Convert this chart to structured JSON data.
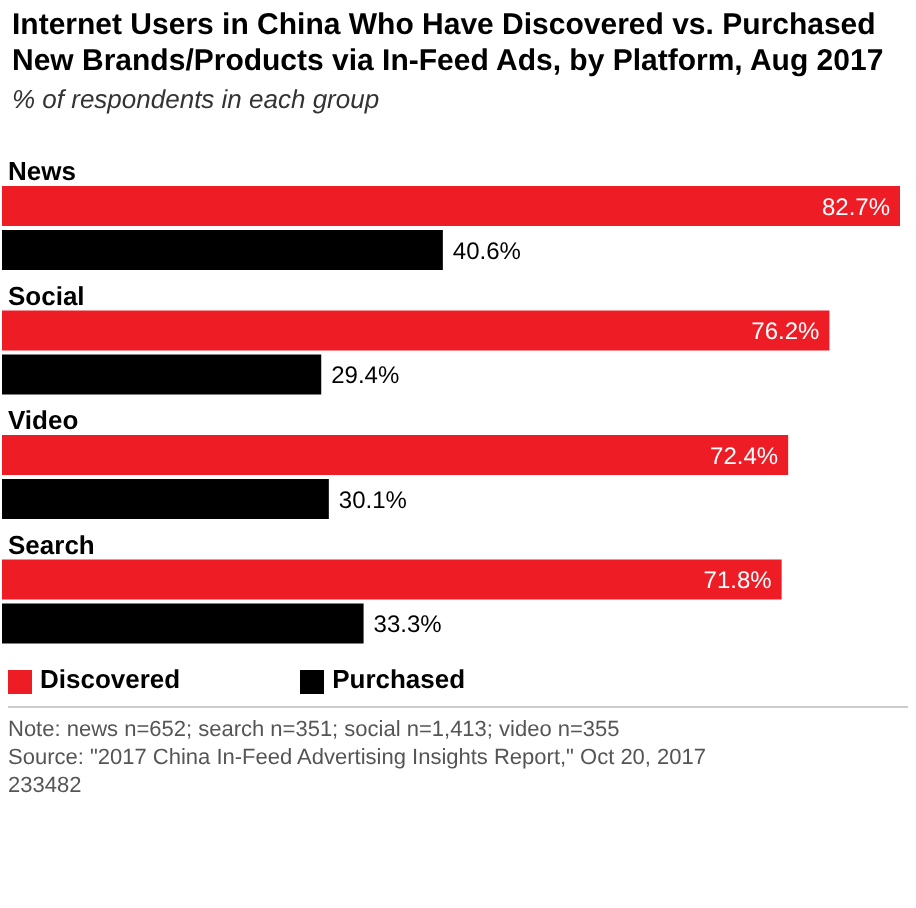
{
  "chart_data": {
    "type": "bar",
    "orientation": "horizontal",
    "title": "Internet Users in China Who Have Discovered vs. Purchased New Brands/Products via In-Feed Ads, by Platform, Aug 2017",
    "subtitle": "% of respondents in each group",
    "categories": [
      "News",
      "Social",
      "Video",
      "Search"
    ],
    "series": [
      {
        "name": "Discovered",
        "color": "#ee1c25",
        "values": [
          82.7,
          76.2,
          72.4,
          71.8
        ],
        "value_labels": [
          "82.7%",
          "76.2%",
          "72.4%",
          "71.8%"
        ]
      },
      {
        "name": "Purchased",
        "color": "#000000",
        "values": [
          40.6,
          29.4,
          30.1,
          33.3
        ],
        "value_labels": [
          "40.6%",
          "29.4%",
          "30.1%",
          "33.3%"
        ]
      }
    ],
    "legend": "bottom left",
    "grid": false,
    "annotations": [
      "Note: news n=652; search n=351; social n=1,413; video n=355",
      "Source: \"2017 China In-Feed Advertising Insights Report,\" Oct 20, 2017",
      "233482"
    ]
  }
}
